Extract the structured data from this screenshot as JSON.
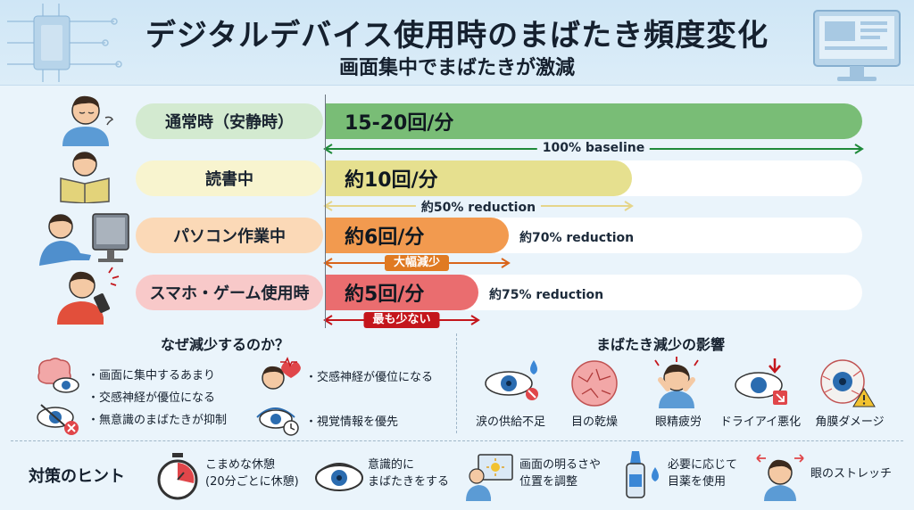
{
  "header": {
    "title": "デジタルデバイス使用時のまばたき頻度変化",
    "subtitle": "画面集中でまばたきが激減"
  },
  "chart_data": {
    "type": "bar",
    "categories": [
      "通常時（安静時）",
      "読書中",
      "パソコン作業中",
      "スマホ・ゲーム使用時"
    ],
    "values": [
      17.5,
      10,
      6,
      5
    ],
    "value_labels": [
      "15-20回/分",
      "約10回/分",
      "約6回/分",
      "約5回/分"
    ],
    "reductions": [
      "100% baseline",
      "約50% reduction",
      "約70% reduction",
      "約75% reduction"
    ],
    "tags": [
      "",
      "",
      "大幅減少",
      "最も少ない"
    ],
    "xlim": [
      0,
      17.5
    ],
    "colors": [
      "#79bd76",
      "#e6e08f",
      "#f29a4f",
      "#ea6d6f"
    ],
    "label_colors": [
      "#d3ead0",
      "#f8f4cf",
      "#fbd9b7",
      "#f8c9c9"
    ],
    "arrow_colors": [
      "#1f8a3a",
      "#e5d58a",
      "#d9651b",
      "#c4161c"
    ],
    "tag_colors": [
      "",
      "",
      "#e07a22",
      "#c4161c"
    ],
    "title": "",
    "xlabel": "",
    "ylabel": ""
  },
  "why": {
    "title": "なぜ減少するのか？",
    "items": [
      "・画面に集中するあまり",
      "・交感神経が優位になる",
      "・無意識のまばたきが抑制",
      "・交感神経が優位になる",
      "・視覚情報を優先"
    ]
  },
  "effects": {
    "title": "まばたき減少の影響",
    "items": [
      "涙の供給不足",
      "目の乾燥",
      "眼精疲労",
      "ドライアイ悪化",
      "角膜ダメージ"
    ]
  },
  "tips": {
    "title": "対策のヒント",
    "items": [
      {
        "line1": "こまめな休憩",
        "line2": "(20分ごとに休憩)"
      },
      {
        "line1": "意識的に",
        "line2": "まばたきをする"
      },
      {
        "line1": "画面の明るさや",
        "line2": "位置を調整"
      },
      {
        "line1": "必要に応じて",
        "line2": "目薬を使用"
      },
      {
        "line1": "眼のストレッチ",
        "line2": ""
      }
    ]
  }
}
